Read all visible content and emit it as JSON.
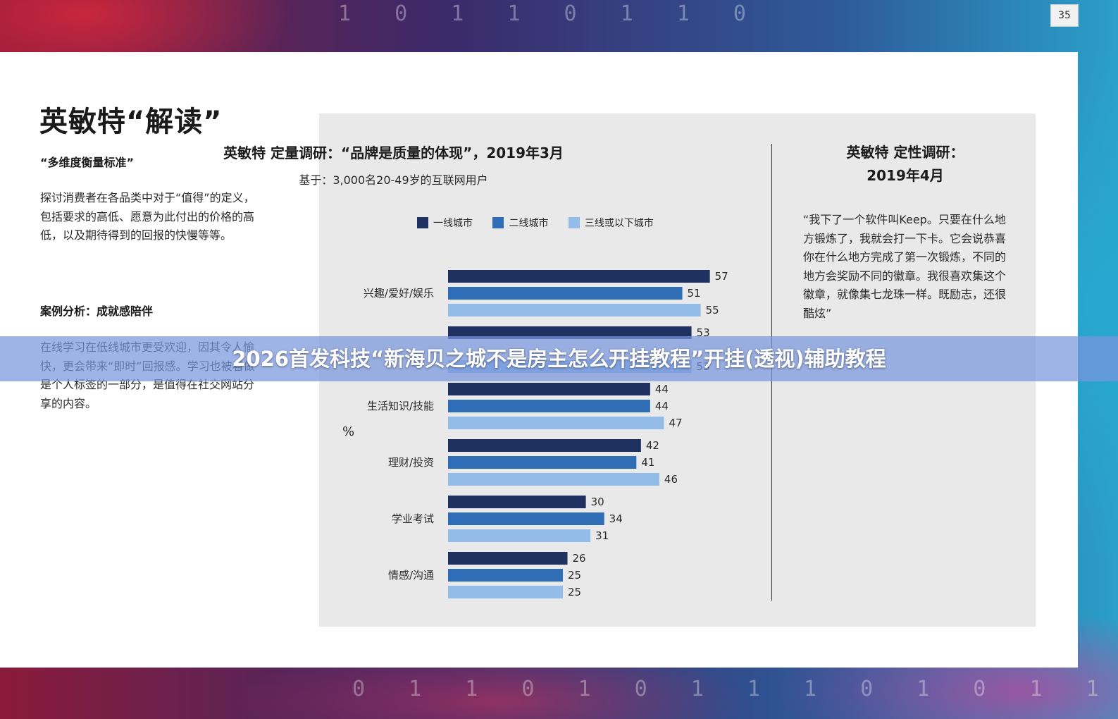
{
  "page_number": "35",
  "left": {
    "title": "英敏特“解读”",
    "subtitle": "“多维度衡量标准”",
    "paragraph": "探讨消费者在各品类中对于“值得”的定义，包括要求的高低、愿意为此付出的价格的高低，以及期待得到的回报的快慢等等。",
    "case_heading": "案例分析：成就感陪伴",
    "case_paragraph": "在线学习在低线城市更受欢迎，因其令人愉快，更会带来“即时”回报感。学习也被看做是个人标签的一部分，是值得在社交网站分享的内容。"
  },
  "right": {
    "title_line1": "英敏特 定性调研：",
    "title_line2": "2019年4月",
    "quote": "“我下了一个软件叫Keep。只要在什么地方锻炼了，我就会打一下卡。它会说恭喜你在什么地方完成了第一次锻炼，不同的地方会奖励不同的徽章。我很喜欢集这个徽章，就像集七龙珠一样。既励志，还很酷炫”"
  },
  "overlay": {
    "text": "2026首发科技“新海贝之城不是房主怎么开挂教程”开挂(透视)辅助教程"
  },
  "chart_data": {
    "type": "bar",
    "orientation": "horizontal",
    "title": "英敏特 定量调研：“品牌是质量的体现”，2019年3月",
    "subtitle": "基于：3,000名20-49岁的互联网用户",
    "unit_label": "%",
    "categories": [
      "兴趣/爱好/娱乐",
      "",
      "生活知识/技能",
      "理财/投资",
      "学业考试",
      "情感/沟通"
    ],
    "series": [
      {
        "name": "一线城市",
        "color": "#1e3160",
        "values": [
          57,
          53,
          44,
          42,
          30,
          26
        ]
      },
      {
        "name": "二线城市",
        "color": "#2f6db5",
        "values": [
          51,
          null,
          44,
          41,
          34,
          25
        ]
      },
      {
        "name": "三线或以下城市",
        "color": "#93bde8",
        "values": [
          55,
          53,
          47,
          46,
          31,
          25
        ]
      }
    ],
    "legend_position": "top",
    "grid": false
  }
}
